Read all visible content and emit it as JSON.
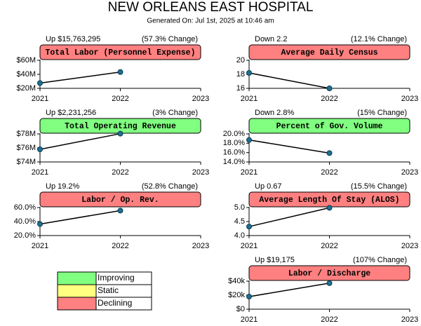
{
  "title": "NEW ORLEANS EAST HOSPITAL",
  "subtitle": "Generated On: Jul 1st, 2025 at 10:46 am",
  "legend": [
    {
      "label": "Improving",
      "color": "#80ff80"
    },
    {
      "label": "Static",
      "color": "#ffff80"
    },
    {
      "label": "Declining",
      "color": "#ff8080"
    }
  ],
  "chart_data": [
    {
      "type": "line",
      "title": "Total Labor (Personnel Expense)",
      "change": "Up $15,763,295",
      "change_pct": "(57.3% Change)",
      "banner_color": "#ff8080",
      "x": [
        2021,
        2022
      ],
      "values": [
        27500000,
        43263295
      ],
      "color": "#1f7090",
      "xlim": [
        2021,
        2023
      ],
      "xticks": [
        2021,
        2022,
        2023
      ],
      "ylim": [
        20000000,
        80000000
      ],
      "yticks": [
        {
          "value": 20000000,
          "label": "$20M"
        },
        {
          "value": 40000000,
          "label": "$40M"
        },
        {
          "value": 60000000,
          "label": "$60M"
        }
      ]
    },
    {
      "type": "line",
      "title": "Average Daily Census",
      "change": "Down 2.2",
      "change_pct": "(12.1% Change)",
      "banner_color": "#ff8080",
      "x": [
        2021,
        2022
      ],
      "values": [
        18.2,
        16.0
      ],
      "color": "#1f7090",
      "xlim": [
        2021,
        2023
      ],
      "xticks": [
        2021,
        2022,
        2023
      ],
      "ylim": [
        16,
        22
      ],
      "yticks": [
        16,
        18,
        20
      ]
    },
    {
      "type": "line",
      "title": "Total Operating Revenue",
      "change": "Up $2,231,256",
      "change_pct": "(3% Change)",
      "banner_color": "#80ff80",
      "x": [
        2021,
        2022
      ],
      "values": [
        75800000,
        78031256
      ],
      "color": "#1f7090",
      "xlim": [
        2021,
        2023
      ],
      "xticks": [
        2021,
        2022,
        2023
      ],
      "ylim": [
        74000000,
        80000000
      ],
      "yticks": [
        {
          "value": 74000000,
          "label": "$74M"
        },
        {
          "value": 76000000,
          "label": "$76M"
        },
        {
          "value": 78000000,
          "label": "$78M"
        }
      ]
    },
    {
      "type": "line",
      "title": "Percent of Gov. Volume",
      "change": "Down 2.8%",
      "change_pct": "(15% Change)",
      "banner_color": "#80ff80",
      "x": [
        2021,
        2022
      ],
      "values": [
        18.7,
        15.9
      ],
      "color": "#1f7090",
      "xlim": [
        2021,
        2023
      ],
      "xticks": [
        2021,
        2022,
        2023
      ],
      "ylim": [
        14,
        23
      ],
      "yticks": [
        {
          "value": 14,
          "label": "14.0%"
        },
        {
          "value": 16,
          "label": "16.0%"
        },
        {
          "value": 18,
          "label": "18.0%"
        },
        {
          "value": 20,
          "label": "20.0%"
        }
      ]
    },
    {
      "type": "line",
      "title": "Labor / Op. Rev.",
      "change": "Up 19.2%",
      "change_pct": "(52.8% Change)",
      "banner_color": "#ff8080",
      "x": [
        2021,
        2022
      ],
      "values": [
        36.4,
        55.6
      ],
      "color": "#1f7090",
      "xlim": [
        2021,
        2023
      ],
      "xticks": [
        2021,
        2022,
        2023
      ],
      "ylim": [
        20,
        80
      ],
      "yticks": [
        {
          "value": 20,
          "label": "20.0%"
        },
        {
          "value": 40,
          "label": "40.0%"
        },
        {
          "value": 60,
          "label": "60.0%"
        }
      ]
    },
    {
      "type": "line",
      "title": "Average Length Of Stay (ALOS)",
      "change": "Up 0.67",
      "change_pct": "(15.5% Change)",
      "banner_color": "#ff8080",
      "x": [
        2021,
        2022
      ],
      "values": [
        4.32,
        4.99
      ],
      "color": "#1f7090",
      "xlim": [
        2021,
        2023
      ],
      "xticks": [
        2021,
        2022,
        2023
      ],
      "ylim": [
        4,
        5.5
      ],
      "yticks": [
        {
          "value": 4,
          "label": "4.0"
        },
        {
          "value": 4.5,
          "label": "4.5"
        },
        {
          "value": 5,
          "label": "5.0"
        }
      ]
    },
    {
      "type": "line",
      "title": "Labor / Discharge",
      "change": "Up $19,175",
      "change_pct": "(107% Change)",
      "banner_color": "#ff8080",
      "x": [
        2021,
        2022
      ],
      "values": [
        17920,
        37095
      ],
      "color": "#1f7090",
      "xlim": [
        2021,
        2023
      ],
      "xticks": [
        2021,
        2022,
        2023
      ],
      "ylim": [
        0,
        60000
      ],
      "yticks": [
        {
          "value": 0,
          "label": "$0"
        },
        {
          "value": 20000,
          "label": "$20k"
        },
        {
          "value": 40000,
          "label": "$40k"
        }
      ]
    }
  ]
}
